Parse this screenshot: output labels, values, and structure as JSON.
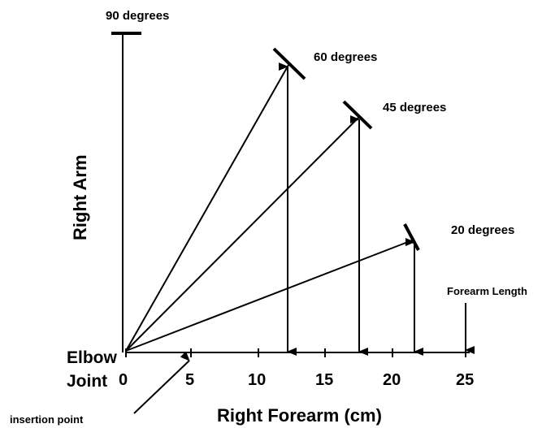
{
  "labels": {
    "y_axis": "Right Arm",
    "x_axis": "Right Forearm (cm)",
    "elbow": "Elbow",
    "joint": "Joint",
    "insertion": "insertion point",
    "forearm_length": "Forearm Length"
  },
  "x_ticks": [
    "0",
    "5",
    "10",
    "15",
    "20",
    "25"
  ],
  "angles": [
    {
      "label": "90 degrees",
      "deg": 90
    },
    {
      "label": "60 degrees",
      "deg": 60
    },
    {
      "label": "45 degrees",
      "deg": 45
    },
    {
      "label": "20 degrees",
      "deg": 20
    }
  ]
}
